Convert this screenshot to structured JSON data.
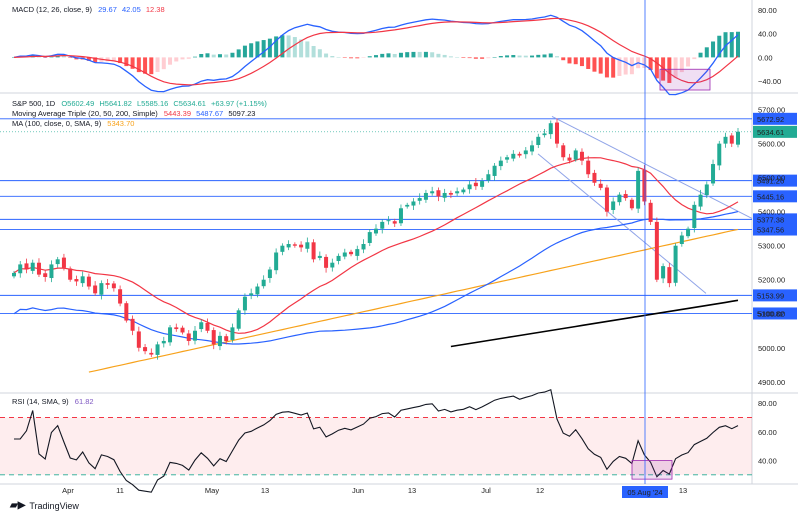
{
  "macd": {
    "title": "MACD (12, 26, close, 9)",
    "v1": "29.67",
    "v2": "42.05",
    "v3": "12.38",
    "ticks": [
      "80.00",
      "40.00",
      "0.00",
      "−40.00"
    ],
    "tick_values": [
      80,
      40,
      0,
      -40
    ]
  },
  "main": {
    "line1_prefix": "S&P 500, 1D",
    "o": "O5602.49",
    "h": "H5641.82",
    "l": "L5585.16",
    "c": "C5634.61",
    "chg": "+63.97 (+1.15%)",
    "line2_prefix": "Moving Average Triple (20, 50, 200, Simple)",
    "ma20": "5443.39",
    "ma50": "5487.67",
    "ma200": "5097.23",
    "line3_prefix": "MA (100, close, 0, SMA, 9)",
    "ma100": "5343.70",
    "ticks": [
      "5700.00",
      "5600.00",
      "5500.00",
      "5400.00",
      "5300.00",
      "5200.00",
      "5100.00",
      "5000.00",
      "4900.00"
    ],
    "tick_values": [
      5700,
      5600,
      5500,
      5400,
      5300,
      5200,
      5100,
      5000,
      4900
    ]
  },
  "levels": [
    {
      "label": "5672.92",
      "value": 5672.92,
      "kind": "level"
    },
    {
      "label": "5634.61",
      "value": 5634.61,
      "kind": "price"
    },
    {
      "label": "5491.26",
      "value": 5491.26,
      "kind": "level"
    },
    {
      "label": "5445.16",
      "value": 5445.16,
      "kind": "level"
    },
    {
      "label": "5377.38",
      "value": 5377.38,
      "kind": "level"
    },
    {
      "label": "5347.56",
      "value": 5347.56,
      "kind": "level"
    },
    {
      "label": "5153.99",
      "value": 5153.99,
      "kind": "level"
    },
    {
      "label": "5100.82",
      "value": 5100.82,
      "kind": "level"
    }
  ],
  "rsi": {
    "title": "RSI (14, SMA, 9)",
    "value": "61.82",
    "ticks": [
      "80.00",
      "60.00",
      "40.00"
    ],
    "tick_values": [
      80,
      60,
      40
    ]
  },
  "x_axis": {
    "labels": [
      "Apr",
      "11",
      "May",
      "13",
      "Jun",
      "13",
      "Jul",
      "12",
      "13"
    ],
    "highlight": "05 Aug '24"
  },
  "brand": "TradingView",
  "colors": {
    "up": "#22ab94",
    "down": "#f23645",
    "ma20": "#f23645",
    "ma50": "#2962ff",
    "ma100": "#f7a21b",
    "ma200": "#000000",
    "level": "#2962ff",
    "macd": "#2962ff",
    "signal": "#f23645"
  },
  "chart_data": {
    "type": "candlestick",
    "title": "S&P 500, 1D",
    "ylim": [
      4870,
      5740
    ],
    "note": "approximate daily closes read from chart",
    "closes": [
      5220,
      5245,
      5230,
      5250,
      5215,
      5208,
      5245,
      5260,
      5235,
      5200,
      5195,
      5210,
      5180,
      5160,
      5190,
      5185,
      5175,
      5130,
      5080,
      5050,
      5000,
      4990,
      4980,
      5010,
      5020,
      5060,
      5055,
      5045,
      5020,
      5050,
      5075,
      5050,
      5010,
      5035,
      5020,
      5060,
      5110,
      5150,
      5160,
      5180,
      5200,
      5230,
      5280,
      5300,
      5305,
      5300,
      5295,
      5310,
      5260,
      5270,
      5235,
      5250,
      5270,
      5280,
      5275,
      5290,
      5305,
      5340,
      5350,
      5370,
      5375,
      5365,
      5410,
      5420,
      5430,
      5440,
      5455,
      5460,
      5445,
      5455,
      5450,
      5460,
      5465,
      5480,
      5475,
      5490,
      5510,
      5535,
      5550,
      5560,
      5570,
      5565,
      5580,
      5595,
      5620,
      5630,
      5660,
      5600,
      5560,
      5550,
      5580,
      5550,
      5510,
      5485,
      5470,
      5400,
      5430,
      5450,
      5440,
      5410,
      5520,
      5430,
      5370,
      5200,
      5240,
      5190,
      5300,
      5330,
      5350,
      5420,
      5450,
      5480,
      5540,
      5600,
      5620,
      5600,
      5635
    ]
  }
}
